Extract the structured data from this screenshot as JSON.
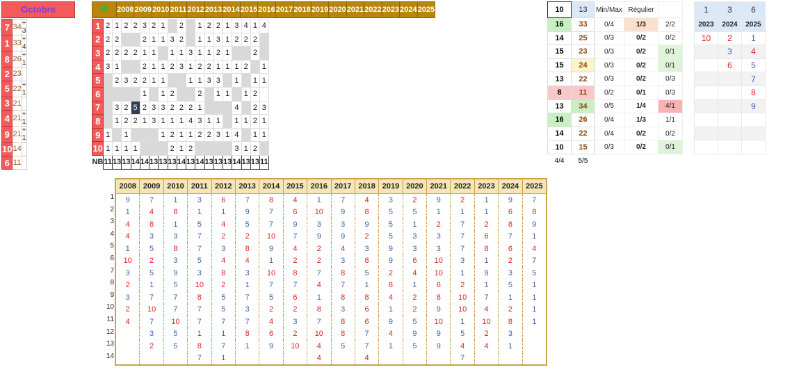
{
  "month": "Octobre",
  "left": {
    "rows": [
      {
        "rank": "7",
        "val": "34",
        "delta": "+ 3"
      },
      {
        "rank": "1",
        "val": "33",
        "delta": "+ 4"
      },
      {
        "rank": "8",
        "val": "26",
        "delta": "+ 1"
      },
      {
        "rank": "2",
        "val": "23",
        "delta": ""
      },
      {
        "rank": "5",
        "val": "22",
        "delta": "+ 1"
      },
      {
        "rank": "3",
        "val": "21",
        "delta": ""
      },
      {
        "rank": "4",
        "val": "21",
        "delta": "+ 1"
      },
      {
        "rank": "9",
        "val": "21",
        "delta": "+ 1"
      },
      {
        "rank": "10",
        "val": "14",
        "delta": ""
      },
      {
        "rank": "6",
        "val": "11",
        "delta": ""
      }
    ]
  },
  "years": [
    "2008",
    "2009",
    "2010",
    "2011",
    "2012",
    "2013",
    "2014",
    "2015",
    "2016",
    "2017",
    "2018",
    "2019",
    "2020",
    "2021",
    "2022",
    "2023",
    "2024",
    "2025"
  ],
  "grid": [
    {
      "rank": "1",
      "cells": [
        "2",
        "1",
        "2",
        "2",
        "3",
        "2",
        "1",
        "",
        "2",
        "",
        "1",
        "2",
        "2",
        "1",
        "3",
        "4",
        "1",
        "4"
      ]
    },
    {
      "rank": "2",
      "cells": [
        "2",
        "2",
        "",
        "",
        "2",
        "1",
        "1",
        "3",
        "2",
        "",
        "1",
        "1",
        "3",
        "1",
        "2",
        "2",
        "2",
        ""
      ]
    },
    {
      "rank": "3",
      "cells": [
        "2",
        "2",
        "2",
        "2",
        "1",
        "1",
        "",
        "1",
        "1",
        "3",
        "1",
        "1",
        "2",
        "1",
        "",
        "",
        "2",
        ""
      ]
    },
    {
      "rank": "4",
      "cells": [
        "3",
        "1",
        "",
        "",
        "2",
        "1",
        "1",
        "2",
        "3",
        "1",
        "2",
        "2",
        "1",
        "1",
        "1",
        "2",
        "",
        "1"
      ]
    },
    {
      "rank": "5",
      "cells": [
        "",
        "2",
        "3",
        "2",
        "2",
        "1",
        "1",
        "",
        "",
        "1",
        "1",
        "3",
        "3",
        "",
        "1",
        "",
        "1",
        "1"
      ]
    },
    {
      "rank": "6",
      "cells": [
        "",
        "",
        "",
        "",
        "1",
        "",
        "1",
        "2",
        "",
        "",
        "2",
        "",
        "1",
        "1",
        "",
        "1",
        "2",
        ""
      ]
    },
    {
      "rank": "7",
      "cells": [
        "",
        "3",
        "2",
        "5",
        "2",
        "3",
        "3",
        "2",
        "2",
        "2",
        "1",
        "",
        "",
        "",
        "4",
        "",
        "2",
        "3"
      ]
    },
    {
      "rank": "8",
      "cells": [
        "",
        "1",
        "2",
        "2",
        "1",
        "3",
        "1",
        "1",
        "1",
        "4",
        "3",
        "1",
        "1",
        "",
        "1",
        "1",
        "2",
        "1"
      ]
    },
    {
      "rank": "9",
      "cells": [
        "1",
        "",
        "1",
        "",
        "",
        "",
        "1",
        "2",
        "1",
        "1",
        "2",
        "2",
        "3",
        "1",
        "4",
        "",
        "1",
        "1"
      ]
    },
    {
      "rank": "10",
      "cells": [
        "1",
        "1",
        "1",
        "1",
        "",
        "",
        "",
        "2",
        "1",
        "2",
        "",
        "",
        "",
        "",
        "3",
        "1",
        "2",
        ""
      ]
    }
  ],
  "grid_gray": [
    [
      7,
      9
    ],
    [
      2,
      3,
      9,
      17
    ],
    [
      6,
      14,
      15,
      17
    ],
    [
      2,
      3,
      16
    ],
    [
      0,
      7,
      8,
      13,
      15
    ],
    [
      0,
      1,
      2,
      3,
      5,
      8,
      9,
      11,
      14
    ],
    [
      0,
      11,
      12,
      13,
      15
    ],
    [
      0,
      13
    ],
    [
      1,
      3,
      4,
      5,
      15
    ],
    [
      4,
      5,
      6,
      10,
      11,
      12,
      13,
      17
    ]
  ],
  "grid_dark": [
    [
      6,
      3
    ]
  ],
  "nb": {
    "label": "NB",
    "values": [
      "11",
      "13",
      "13",
      "14",
      "14",
      "13",
      "13",
      "13",
      "14",
      "13",
      "14",
      "13",
      "13",
      "13",
      "14",
      "13",
      "13",
      "11"
    ]
  },
  "counts": {
    "head": [
      "10",
      "13"
    ],
    "rows": [
      [
        "16",
        "33"
      ],
      [
        "14",
        "25"
      ],
      [
        "15",
        "23"
      ],
      [
        "15",
        "24"
      ],
      [
        "13",
        "22"
      ],
      [
        "8",
        "11"
      ],
      [
        "13",
        "34"
      ],
      [
        "16",
        "26"
      ],
      [
        "14",
        "22"
      ],
      [
        "10",
        "15"
      ]
    ],
    "foot": [
      "4/4",
      "5/5"
    ]
  },
  "stats": {
    "head": [
      "Min/Max",
      "Régulier",
      ""
    ],
    "rows": [
      [
        "0/4",
        "1/3",
        "2/2"
      ],
      [
        "0/3",
        "0/2",
        "0/2"
      ],
      [
        "0/3",
        "0/2",
        "0/1"
      ],
      [
        "0/3",
        "0/2",
        "0/1"
      ],
      [
        "0/3",
        "0/2",
        "0/3"
      ],
      [
        "0/2",
        "0/1",
        "0/3"
      ],
      [
        "0/5",
        "1/4",
        "4/1"
      ],
      [
        "0/4",
        "1/3",
        "1/1"
      ],
      [
        "0/4",
        "0/2",
        "0/2"
      ],
      [
        "0/3",
        "0/2",
        "0/1"
      ]
    ]
  },
  "right": {
    "head": [
      "1",
      "3",
      "6"
    ],
    "years": [
      "2023",
      "2024",
      "2025"
    ],
    "rows": [
      [
        {
          "v": "10",
          "c": "red"
        },
        {
          "v": "2",
          "c": "red"
        },
        {
          "v": "1",
          "c": "blu"
        }
      ],
      [
        {
          "v": "",
          "c": ""
        },
        {
          "v": "3",
          "c": "blu"
        },
        {
          "v": "4",
          "c": "red"
        }
      ],
      [
        {
          "v": "",
          "c": ""
        },
        {
          "v": "6",
          "c": "red"
        },
        {
          "v": "5",
          "c": "blu"
        }
      ],
      [
        {
          "v": "",
          "c": ""
        },
        {
          "v": "",
          "c": ""
        },
        {
          "v": "7",
          "c": "blu"
        }
      ],
      [
        {
          "v": "",
          "c": ""
        },
        {
          "v": "",
          "c": ""
        },
        {
          "v": "8",
          "c": "red"
        }
      ],
      [
        {
          "v": "",
          "c": ""
        },
        {
          "v": "",
          "c": ""
        },
        {
          "v": "9",
          "c": "blu"
        }
      ],
      [
        {
          "v": "",
          "c": ""
        },
        {
          "v": "",
          "c": ""
        },
        {
          "v": "",
          "c": ""
        }
      ],
      [
        {
          "v": "",
          "c": ""
        },
        {
          "v": "",
          "c": ""
        },
        {
          "v": "",
          "c": ""
        }
      ],
      [
        {
          "v": "",
          "c": ""
        },
        {
          "v": "",
          "c": ""
        },
        {
          "v": "",
          "c": ""
        }
      ]
    ]
  },
  "bottom": {
    "row_labels": [
      "1",
      "2",
      "3",
      "4",
      "5",
      "6",
      "7",
      "8",
      "9",
      "10",
      "11",
      "12",
      "13",
      "14"
    ],
    "columns": [
      [
        "9b",
        "1b",
        "4r",
        "4r",
        "1b",
        "10r",
        "3b",
        "2r",
        "3b",
        "2r",
        "4r",
        "",
        "",
        ""
      ],
      [
        "7b",
        "4r",
        "8r",
        "3b",
        "5b",
        "2r",
        "5b",
        "1b",
        "7b",
        "10r",
        "7b",
        "3b",
        "2r",
        ""
      ],
      [
        "1b",
        "8r",
        "1b",
        "3b",
        "8r",
        "3b",
        "9b",
        "5b",
        "7b",
        "7b",
        "10r",
        "5b",
        "5b",
        ""
      ],
      [
        "3b",
        "1b",
        "5b",
        "7b",
        "7b",
        "5b",
        "3b",
        "10r",
        "8r",
        "7b",
        "7b",
        "1b",
        "8r",
        "7b"
      ],
      [
        "6r",
        "1b",
        "4r",
        "2r",
        "3b",
        "4r",
        "8r",
        "2r",
        "5b",
        "5b",
        "7b",
        "1b",
        "7b",
        "1b"
      ],
      [
        "7b",
        "9b",
        "5b",
        "2r",
        "8r",
        "4r",
        "3b",
        "1b",
        "7b",
        "3b",
        "7b",
        "8r",
        "1b",
        ""
      ],
      [
        "8r",
        "7b",
        "7b",
        "10r",
        "9b",
        "1b",
        "10r",
        "7b",
        "5b",
        "2r",
        "4r",
        "6r",
        "9b",
        ""
      ],
      [
        "4r",
        "6r",
        "9b",
        "7b",
        "4r",
        "2r",
        "8r",
        "7b",
        "6r",
        "2r",
        "3b",
        "2r",
        "10r",
        ""
      ],
      [
        "1b",
        "10r",
        "3b",
        "9b",
        "2r",
        "2r",
        "7b",
        "4r",
        "1b",
        "8r",
        "7b",
        "10r",
        "4r",
        "4r"
      ],
      [
        "7b",
        "9b",
        "3b",
        "9b",
        "4r",
        "3b",
        "8r",
        "7b",
        "8r",
        "3b",
        "8r",
        "8r",
        "5b",
        ""
      ],
      [
        "4r",
        "8r",
        "9b",
        "2r",
        "3b",
        "8r",
        "5b",
        "1b",
        "8r",
        "6r",
        "6r",
        "7b",
        "7b",
        "4r"
      ],
      [
        "3b",
        "5b",
        "5b",
        "5b",
        "9b",
        "9b",
        "2r",
        "8r",
        "4r",
        "1b",
        "9b",
        "4r",
        "1b",
        ""
      ],
      [
        "2r",
        "5b",
        "1b",
        "3b",
        "3b",
        "6r",
        "4r",
        "1b",
        "2r",
        "2r",
        "5b",
        "9b",
        "5b",
        ""
      ],
      [
        "9b",
        "1b",
        "2r",
        "3b",
        "3b",
        "10r",
        "10r",
        "6r",
        "8r",
        "9b",
        "10r",
        "9b",
        "9b",
        ""
      ],
      [
        "2r",
        "1b",
        "7b",
        "7b",
        "7b",
        "3b",
        "1b",
        "2r",
        "10r",
        "10r",
        "1b",
        "5b",
        "4r",
        "7b"
      ],
      [
        "1b",
        "1b",
        "2r",
        "6r",
        "8r",
        "1b",
        "9b",
        "1b",
        "7b",
        "4r",
        "10r",
        "2r",
        "4r",
        ""
      ],
      [
        "9b",
        "6r",
        "8r",
        "7b",
        "6r",
        "2r",
        "3b",
        "5b",
        "1b",
        "2r",
        "8r",
        "3b",
        "1b",
        ""
      ],
      [
        "7b",
        "8r",
        "9b",
        "1b",
        "4r",
        "7b",
        "5b",
        "1b",
        "1b",
        "1b",
        "1b",
        "",
        "",
        ""
      ]
    ]
  }
}
